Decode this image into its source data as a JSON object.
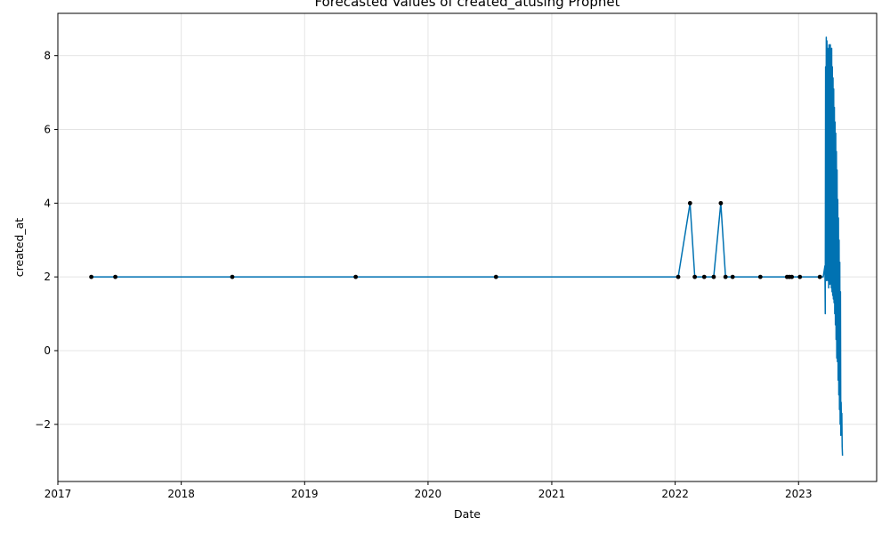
{
  "chart_data": {
    "type": "line",
    "title": "Forecasted Values of created_atusing Prophet",
    "xlabel": "Date",
    "ylabel": "created_at",
    "x_axis_type": "date",
    "xlim": [
      "2017-01-01",
      "2023-08-20"
    ],
    "ylim": [
      -3.55,
      9.15
    ],
    "x_ticks": [
      "2017",
      "2018",
      "2019",
      "2020",
      "2021",
      "2022",
      "2023"
    ],
    "x_tick_dates": [
      "2017-01-01",
      "2018-01-01",
      "2019-01-01",
      "2020-01-01",
      "2021-01-01",
      "2022-01-01",
      "2023-01-01"
    ],
    "y_ticks": [
      -2,
      0,
      2,
      4,
      6,
      8
    ],
    "y_tick_labels": [
      "−2",
      "0",
      "2",
      "4",
      "6",
      "8"
    ],
    "grid": true,
    "series": [
      {
        "kind": "line",
        "color": "#0072B2",
        "x": [
          "2017-04-10",
          "2022-01-10",
          "2022-02-14",
          "2022-02-28",
          "2022-03-28",
          "2022-04-25",
          "2022-05-16",
          "2022-05-30",
          "2023-03-15",
          "2023-03-20",
          "2023-03-21",
          "2023-03-22",
          "2023-03-23",
          "2023-03-24",
          "2023-03-25",
          "2023-03-26",
          "2023-03-27",
          "2023-03-28",
          "2023-03-29",
          "2023-03-30",
          "2023-03-31",
          "2023-04-01",
          "2023-04-02",
          "2023-04-03",
          "2023-04-04",
          "2023-04-05",
          "2023-04-06",
          "2023-04-07",
          "2023-04-08",
          "2023-04-09",
          "2023-04-10",
          "2023-04-11",
          "2023-04-12",
          "2023-04-13",
          "2023-04-14",
          "2023-04-15",
          "2023-04-16",
          "2023-04-17",
          "2023-04-18",
          "2023-04-19",
          "2023-04-20",
          "2023-04-21",
          "2023-04-22",
          "2023-04-23",
          "2023-04-24",
          "2023-04-25",
          "2023-04-26",
          "2023-04-27",
          "2023-04-28",
          "2023-04-29",
          "2023-04-30",
          "2023-05-01",
          "2023-05-02",
          "2023-05-03",
          "2023-05-04",
          "2023-05-05",
          "2023-05-06",
          "2023-05-07",
          "2023-05-08",
          "2023-05-09",
          "2023-05-10",
          "2023-05-11"
        ],
        "y": [
          2,
          2,
          4,
          2,
          2,
          2,
          4,
          2,
          2,
          2.3,
          1.0,
          7.7,
          2.0,
          8.5,
          1.9,
          8.4,
          2.0,
          8.2,
          1.9,
          8.0,
          1.7,
          8.3,
          1.9,
          8.1,
          1.8,
          8.3,
          1.9,
          7.9,
          1.7,
          8.2,
          1.6,
          7.7,
          1.5,
          7.4,
          1.4,
          7.1,
          1.3,
          6.6,
          1.0,
          6.2,
          0.7,
          5.9,
          0.3,
          5.4,
          -0.2,
          4.9,
          -0.3,
          4.1,
          -0.8,
          3.6,
          -1.2,
          3.0,
          -1.6,
          2.4,
          -2.0,
          1.6,
          -2.3,
          -1.4,
          -2.2,
          -1.7,
          -2.6,
          -2.85
        ]
      },
      {
        "kind": "scatter",
        "color": "#000000",
        "x": [
          "2017-04-10",
          "2017-06-20",
          "2018-06-01",
          "2019-06-01",
          "2020-07-20",
          "2022-01-10",
          "2022-02-14",
          "2022-02-28",
          "2022-03-28",
          "2022-04-25",
          "2022-05-16",
          "2022-05-30",
          "2022-06-20",
          "2022-09-10",
          "2022-11-28",
          "2022-12-05",
          "2022-12-12",
          "2023-01-05",
          "2023-03-05"
        ],
        "y": [
          2,
          2,
          2,
          2,
          2,
          2,
          4,
          2,
          2,
          2,
          4,
          2,
          2,
          2,
          2,
          2,
          2,
          2,
          2
        ]
      }
    ]
  }
}
